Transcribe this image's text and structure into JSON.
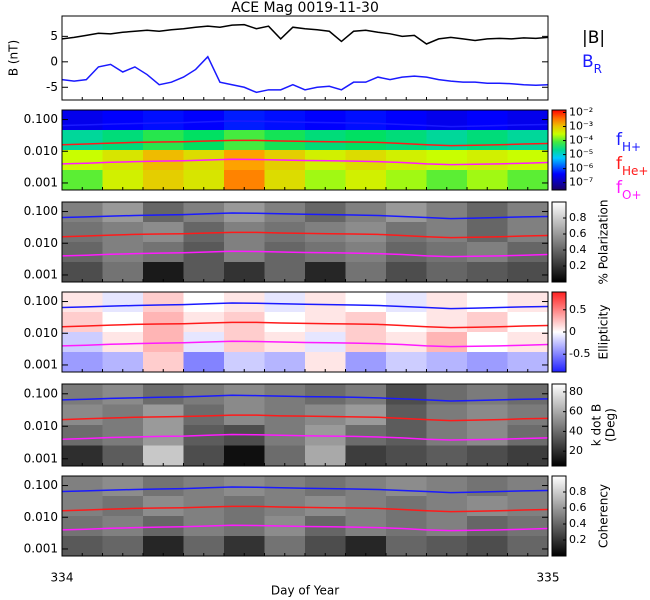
{
  "chart_data": [
    {
      "type": "line",
      "title": "ACE Mag 0019-11-30",
      "ylabel": "B (nT)",
      "xlim": [
        334,
        335
      ],
      "ylim": [
        -7.5,
        9
      ],
      "yticks": [
        5,
        0,
        -5
      ],
      "x": [
        334,
        334.025,
        334.05,
        334.075,
        334.1,
        334.125,
        334.15,
        334.175,
        334.2,
        334.225,
        334.25,
        334.275,
        334.3,
        334.325,
        334.35,
        334.375,
        334.4,
        334.425,
        334.45,
        334.475,
        334.5,
        334.525,
        334.55,
        334.575,
        334.6,
        334.625,
        334.65,
        334.675,
        334.7,
        334.725,
        334.75,
        334.775,
        334.8,
        334.825,
        334.85,
        334.875,
        334.9,
        334.925,
        334.95,
        334.975,
        335
      ],
      "series": [
        {
          "name": "|B|",
          "color": "#000000",
          "values": [
            4.5,
            4.8,
            5.2,
            5.6,
            5.5,
            5.8,
            6.0,
            6.2,
            6.0,
            6.3,
            6.5,
            6.8,
            7.0,
            6.8,
            7.2,
            7.3,
            6.5,
            7.0,
            4.5,
            6.8,
            6.5,
            6.3,
            6.0,
            4.0,
            6.0,
            6.2,
            5.8,
            5.5,
            5.0,
            5.2,
            3.5,
            4.5,
            4.8,
            4.5,
            4.2,
            4.5,
            4.6,
            4.5,
            4.7,
            4.6,
            4.8
          ]
        },
        {
          "name": "B",
          "subscript": "R",
          "color": "#1a1aff",
          "values": [
            -3.5,
            -3.8,
            -3.5,
            -1,
            -0.5,
            -2,
            -1,
            -2.5,
            -4.5,
            -4,
            -3,
            -1.5,
            1,
            -4,
            -4.5,
            -5,
            -6,
            -5.5,
            -5.5,
            -4.5,
            -5.5,
            -5,
            -4.8,
            -5.5,
            -4,
            -4,
            -3,
            -3.5,
            -3,
            -2.8,
            -3,
            -3.5,
            -3.8,
            -4,
            -4,
            -4.2,
            -4.2,
            -4.3,
            -4.5,
            -4.6,
            -4.5
          ]
        }
      ]
    },
    {
      "type": "spectrogram",
      "log": true,
      "xlim": [
        334,
        335
      ],
      "ylim": [
        0.0006,
        0.2
      ],
      "yticks": [
        {
          "value": 0.1,
          "label": "0.100"
        },
        {
          "value": 0.01,
          "label": "0.010"
        },
        {
          "value": 0.001,
          "label": "0.001"
        }
      ],
      "colormap": "rainbow",
      "clog": true,
      "clim": [
        3e-08,
        0.015
      ],
      "cticks": [
        {
          "value": 0.01,
          "label": "10⁻²"
        },
        {
          "value": 0.001,
          "label": "10⁻³"
        },
        {
          "value": 0.0001,
          "label": "10⁻⁴"
        },
        {
          "value": 1e-05,
          "label": "10⁻⁵"
        },
        {
          "value": 1e-06,
          "label": "10⁻⁶"
        },
        {
          "value": 1e-07,
          "label": "10⁻⁷"
        }
      ],
      "z": [
        [
          3e-07,
          4e-07,
          5e-07,
          4e-07,
          6e-07,
          5e-07,
          4e-07,
          5e-07,
          4e-07,
          3e-07,
          4e-07,
          3e-07
        ],
        [
          2e-05,
          3e-05,
          6e-05,
          4e-05,
          8e-05,
          5e-05,
          3e-05,
          4e-05,
          3e-05,
          2e-05,
          3e-05,
          2e-05
        ],
        [
          0.0003,
          0.0005,
          0.0012,
          0.0006,
          0.002,
          0.0008,
          0.0004,
          0.0006,
          0.0004,
          0.0003,
          0.0004,
          0.0003
        ],
        [
          0.0001,
          0.0004,
          0.0008,
          0.0005,
          0.003,
          0.0006,
          0.0002,
          0.0004,
          0.0002,
          0.0001,
          0.0002,
          0.0001
        ]
      ],
      "x": [
        334,
        334.05,
        334.1,
        334.15,
        334.2,
        334.25,
        334.3,
        334.35,
        334.4,
        334.45,
        334.5,
        334.55,
        334.6,
        334.65,
        334.7,
        334.75,
        334.8,
        334.85,
        334.9,
        334.95,
        335
      ],
      "series": [
        {
          "name": "f",
          "subscript": "H+",
          "color": "#1a1aff",
          "values": [
            0.065,
            0.068,
            0.072,
            0.075,
            0.078,
            0.08,
            0.085,
            0.09,
            0.088,
            0.085,
            0.082,
            0.08,
            0.078,
            0.075,
            0.07,
            0.065,
            0.06,
            0.062,
            0.065,
            0.068,
            0.07
          ]
        },
        {
          "name": "f",
          "subscript": "He+",
          "color": "#ff1a1a",
          "values": [
            0.016,
            0.017,
            0.018,
            0.019,
            0.0195,
            0.02,
            0.021,
            0.022,
            0.022,
            0.021,
            0.0205,
            0.02,
            0.0195,
            0.019,
            0.0175,
            0.016,
            0.015,
            0.0155,
            0.016,
            0.017,
            0.0175
          ]
        },
        {
          "name": "f",
          "subscript": "O+",
          "color": "#ff1aff",
          "values": [
            0.004,
            0.0042,
            0.0045,
            0.0047,
            0.0049,
            0.005,
            0.0053,
            0.0056,
            0.0055,
            0.0053,
            0.0051,
            0.005,
            0.0049,
            0.0047,
            0.0044,
            0.004,
            0.0038,
            0.0039,
            0.004,
            0.0042,
            0.0044
          ]
        }
      ]
    },
    {
      "type": "heatmap",
      "log": true,
      "xlim": [
        334,
        335
      ],
      "ylim": [
        0.0006,
        0.2
      ],
      "yticks": [
        {
          "value": 0.1,
          "label": "0.100"
        },
        {
          "value": 0.01,
          "label": "0.010"
        },
        {
          "value": 0.001,
          "label": "0.001"
        }
      ],
      "colormap": "gray",
      "clim": [
        0,
        1
      ],
      "cticks": [
        0.2,
        0.4,
        0.6,
        0.8
      ],
      "clabel": [
        "% Polarization"
      ],
      "z": [
        [
          0.5,
          0.6,
          0.4,
          0.5,
          0.6,
          0.5,
          0.4,
          0.5,
          0.6,
          0.5,
          0.4,
          0.5
        ],
        [
          0.45,
          0.5,
          0.55,
          0.4,
          0.5,
          0.45,
          0.5,
          0.55,
          0.45,
          0.5,
          0.4,
          0.5
        ],
        [
          0.4,
          0.5,
          0.45,
          0.35,
          0.5,
          0.4,
          0.45,
          0.5,
          0.4,
          0.45,
          0.5,
          0.4
        ],
        [
          0.3,
          0.45,
          0.1,
          0.35,
          0.2,
          0.4,
          0.15,
          0.45,
          0.3,
          0.4,
          0.35,
          0.3
        ]
      ]
    },
    {
      "type": "heatmap",
      "log": true,
      "xlim": [
        334,
        335
      ],
      "ylim": [
        0.0006,
        0.2
      ],
      "yticks": [
        {
          "value": 0.1,
          "label": "0.100"
        },
        {
          "value": 0.01,
          "label": "0.010"
        },
        {
          "value": 0.001,
          "label": "0.001"
        }
      ],
      "colormap": "bwr",
      "clim": [
        -0.9,
        0.9
      ],
      "cticks": [
        0.5,
        0.0,
        -0.5
      ],
      "clabel": [
        "Ellipticity"
      ],
      "z": [
        [
          0.1,
          -0.1,
          0.2,
          0.0,
          0.1,
          -0.1,
          0.1,
          0.0,
          -0.1,
          0.1,
          0.0,
          0.1
        ],
        [
          0.2,
          0.0,
          0.3,
          0.1,
          0.2,
          0.0,
          0.1,
          0.2,
          0.0,
          0.1,
          0.2,
          0.0
        ],
        [
          -0.2,
          0.1,
          0.3,
          -0.1,
          0.2,
          0.1,
          -0.1,
          0.2,
          0.1,
          0.3,
          0.0,
          0.1
        ],
        [
          -0.4,
          -0.3,
          0.2,
          -0.5,
          -0.2,
          -0.3,
          0.1,
          -0.4,
          -0.2,
          -0.3,
          -0.4,
          -0.3
        ]
      ]
    },
    {
      "type": "heatmap",
      "log": true,
      "xlim": [
        334,
        335
      ],
      "ylim": [
        0.0006,
        0.2
      ],
      "yticks": [
        {
          "value": 0.1,
          "label": "0.100"
        },
        {
          "value": 0.01,
          "label": "0.010"
        },
        {
          "value": 0.001,
          "label": "0.001"
        }
      ],
      "colormap": "gray",
      "clim": [
        5,
        88
      ],
      "cticks": [
        80,
        60,
        40,
        20
      ],
      "clabel": [
        "k dot B",
        "(Deg)"
      ],
      "z": [
        [
          45,
          50,
          40,
          45,
          50,
          45,
          40,
          45,
          30,
          40,
          45,
          40
        ],
        [
          50,
          45,
          55,
          40,
          50,
          45,
          50,
          55,
          35,
          45,
          50,
          45
        ],
        [
          40,
          45,
          55,
          35,
          30,
          45,
          55,
          40,
          35,
          45,
          50,
          40
        ],
        [
          20,
          35,
          70,
          30,
          10,
          40,
          60,
          25,
          30,
          35,
          30,
          25
        ]
      ]
    },
    {
      "type": "heatmap",
      "log": true,
      "xlim": [
        334,
        335
      ],
      "ylim": [
        0.0006,
        0.2
      ],
      "yticks": [
        {
          "value": 0.1,
          "label": "0.100"
        },
        {
          "value": 0.01,
          "label": "0.010"
        },
        {
          "value": 0.001,
          "label": "0.001"
        }
      ],
      "xticks": [
        334,
        335
      ],
      "xlabel": "Day of Year",
      "colormap": "gray",
      "clim": [
        0,
        1
      ],
      "cticks": [
        0.8,
        0.6,
        0.4,
        0.2
      ],
      "clabel": [
        "Coherency"
      ],
      "z": [
        [
          0.5,
          0.55,
          0.45,
          0.5,
          0.55,
          0.5,
          0.45,
          0.5,
          0.55,
          0.5,
          0.45,
          0.5
        ],
        [
          0.5,
          0.45,
          0.55,
          0.5,
          0.45,
          0.5,
          0.55,
          0.5,
          0.45,
          0.5,
          0.55,
          0.5
        ],
        [
          0.45,
          0.5,
          0.4,
          0.5,
          0.45,
          0.55,
          0.4,
          0.5,
          0.45,
          0.5,
          0.4,
          0.45
        ],
        [
          0.35,
          0.4,
          0.15,
          0.4,
          0.2,
          0.45,
          0.3,
          0.15,
          0.4,
          0.35,
          0.3,
          0.4
        ]
      ]
    }
  ]
}
